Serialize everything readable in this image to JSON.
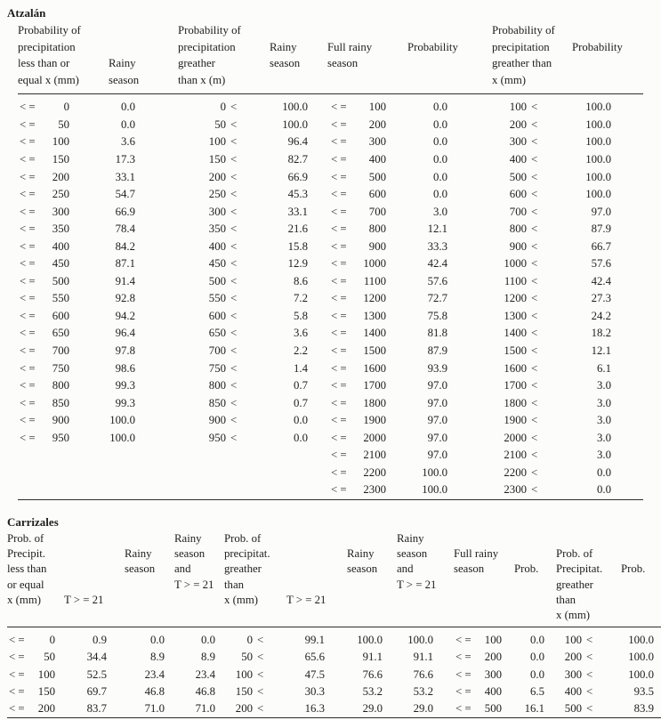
{
  "symbols": {
    "le": "< =",
    "gt": "<"
  },
  "atzalan": {
    "title": "Atzalán",
    "columns": [
      {
        "id": "le-x",
        "type": "le",
        "header": [
          "Probability of",
          "precipitation",
          "less than or",
          "equal x (mm)"
        ]
      },
      {
        "id": "rainy-le",
        "type": "num",
        "header": [
          "Rainy",
          "season"
        ]
      },
      {
        "id": "gt-x",
        "type": "gt",
        "header": [
          "Probability of",
          "precipitation",
          "greather",
          "than x (m)"
        ]
      },
      {
        "id": "rainy-gt",
        "type": "num",
        "header": [
          "Rainy",
          "season"
        ]
      },
      {
        "id": "full-le-x",
        "type": "le",
        "header": [
          "Full rainy",
          "season"
        ]
      },
      {
        "id": "full-prob-le",
        "type": "num",
        "header": [
          "Probability"
        ]
      },
      {
        "id": "full-gt-x",
        "type": "gt",
        "header": [
          "Probability of",
          "precipitation",
          "greather than",
          "x (mm)"
        ]
      },
      {
        "id": "full-prob-gt",
        "type": "num",
        "header": [
          "Probability"
        ]
      }
    ],
    "rows": [
      [
        "0",
        "0.0",
        "0",
        "100.0",
        "100",
        "0.0",
        "100",
        "100.0"
      ],
      [
        "50",
        "0.0",
        "50",
        "100.0",
        "200",
        "0.0",
        "200",
        "100.0"
      ],
      [
        "100",
        "3.6",
        "100",
        "96.4",
        "300",
        "0.0",
        "300",
        "100.0"
      ],
      [
        "150",
        "17.3",
        "150",
        "82.7",
        "400",
        "0.0",
        "400",
        "100.0"
      ],
      [
        "200",
        "33.1",
        "200",
        "66.9",
        "500",
        "0.0",
        "500",
        "100.0"
      ],
      [
        "250",
        "54.7",
        "250",
        "45.3",
        "600",
        "0.0",
        "600",
        "100.0"
      ],
      [
        "300",
        "66.9",
        "300",
        "33.1",
        "700",
        "3.0",
        "700",
        "97.0"
      ],
      [
        "350",
        "78.4",
        "350",
        "21.6",
        "800",
        "12.1",
        "800",
        "87.9"
      ],
      [
        "400",
        "84.2",
        "400",
        "15.8",
        "900",
        "33.3",
        "900",
        "66.7"
      ],
      [
        "450",
        "87.1",
        "450",
        "12.9",
        "1000",
        "42.4",
        "1000",
        "57.6"
      ],
      [
        "500",
        "91.4",
        "500",
        "8.6",
        "1100",
        "57.6",
        "1100",
        "42.4"
      ],
      [
        "550",
        "92.8",
        "550",
        "7.2",
        "1200",
        "72.7",
        "1200",
        "27.3"
      ],
      [
        "600",
        "94.2",
        "600",
        "5.8",
        "1300",
        "75.8",
        "1300",
        "24.2"
      ],
      [
        "650",
        "96.4",
        "650",
        "3.6",
        "1400",
        "81.8",
        "1400",
        "18.2"
      ],
      [
        "700",
        "97.8",
        "700",
        "2.2",
        "1500",
        "87.9",
        "1500",
        "12.1"
      ],
      [
        "750",
        "98.6",
        "750",
        "1.4",
        "1600",
        "93.9",
        "1600",
        "6.1"
      ],
      [
        "800",
        "99.3",
        "800",
        "0.7",
        "1700",
        "97.0",
        "1700",
        "3.0"
      ],
      [
        "850",
        "99.3",
        "850",
        "0.7",
        "1800",
        "97.0",
        "1800",
        "3.0"
      ],
      [
        "900",
        "100.0",
        "900",
        "0.0",
        "1900",
        "97.0",
        "1900",
        "3.0"
      ],
      [
        "950",
        "100.0",
        "950",
        "0.0",
        "2000",
        "97.0",
        "2000",
        "3.0"
      ],
      [
        null,
        null,
        null,
        null,
        "2100",
        "97.0",
        "2100",
        "3.0"
      ],
      [
        null,
        null,
        null,
        null,
        "2200",
        "100.0",
        "2200",
        "0.0"
      ],
      [
        null,
        null,
        null,
        null,
        "2300",
        "100.0",
        "2300",
        "0.0"
      ]
    ]
  },
  "carrizales": {
    "title": "Carrizales",
    "columns": [
      {
        "id": "le-x",
        "type": "le",
        "header": [
          "Prob. of",
          "Precipit.",
          "less than",
          "or equal",
          "x (mm)"
        ]
      },
      {
        "id": "t21-le",
        "type": "num",
        "header": [
          "T > = 21"
        ]
      },
      {
        "id": "rainy-le",
        "type": "num",
        "header": [
          "Rainy",
          "season"
        ]
      },
      {
        "id": "rainy-t21-le",
        "type": "num",
        "header": [
          "Rainy",
          "season",
          "and",
          "T > = 21"
        ]
      },
      {
        "id": "gt-x",
        "type": "gt",
        "header": [
          "Prob. of",
          "precipitat.",
          "greather",
          "than",
          "x (mm)"
        ]
      },
      {
        "id": "t21-gt",
        "type": "num",
        "header": [
          "T > = 21"
        ]
      },
      {
        "id": "rainy-gt",
        "type": "num",
        "header": [
          "Rainy",
          "season"
        ]
      },
      {
        "id": "rainy-t21-gt",
        "type": "num",
        "header": [
          "Rainy",
          "season",
          "and",
          "T > = 21"
        ]
      },
      {
        "id": "full-le-x",
        "type": "le",
        "header": [
          "Full rainy",
          "season"
        ]
      },
      {
        "id": "full-prob-le",
        "type": "num",
        "header": [
          "Prob."
        ]
      },
      {
        "id": "full-gt-x",
        "type": "gt",
        "header": [
          "Prob. of",
          "Precipitat.",
          "greather",
          "than",
          "x (mm)"
        ]
      },
      {
        "id": "full-prob-gt",
        "type": "num",
        "header": [
          "Prob."
        ]
      }
    ],
    "rows": [
      [
        "0",
        "0.9",
        "0.0",
        "0.0",
        "0",
        "99.1",
        "100.0",
        "100.0",
        "100",
        "0.0",
        "100",
        "100.0"
      ],
      [
        "50",
        "34.4",
        "8.9",
        "8.9",
        "50",
        "65.6",
        "91.1",
        "91.1",
        "200",
        "0.0",
        "200",
        "100.0"
      ],
      [
        "100",
        "52.5",
        "23.4",
        "23.4",
        "100",
        "47.5",
        "76.6",
        "76.6",
        "300",
        "0.0",
        "300",
        "100.0"
      ],
      [
        "150",
        "69.7",
        "46.8",
        "46.8",
        "150",
        "30.3",
        "53.2",
        "53.2",
        "400",
        "6.5",
        "400",
        "93.5"
      ],
      [
        "200",
        "83.7",
        "71.0",
        "71.0",
        "200",
        "16.3",
        "29.0",
        "29.0",
        "500",
        "16.1",
        "500",
        "83.9"
      ]
    ]
  }
}
